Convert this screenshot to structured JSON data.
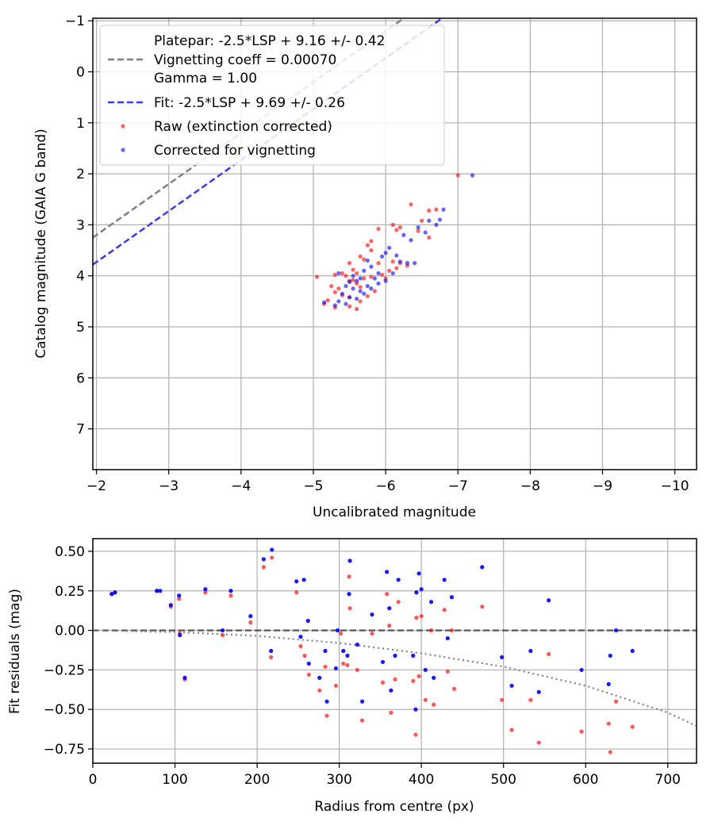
{
  "colors": {
    "raw": "#ff0000",
    "corrected": "#0000ff",
    "platepar_line": "#808080",
    "fit_line": "#3a3aee",
    "grid": "#b0b0b0",
    "model_curve": "#808080",
    "zero_line": "#555555"
  },
  "chart_data": [
    {
      "type": "scatter",
      "xlabel": "Uncalibrated magnitude",
      "ylabel": "Catalog magnitude (GAIA G band)",
      "xlim": [
        -1.95,
        -10.3
      ],
      "ylim": [
        7.8,
        -1.05
      ],
      "x_ticks": [
        -2,
        -3,
        -4,
        -5,
        -6,
        -7,
        -8,
        -9,
        -10
      ],
      "x_tick_labels": [
        "−2",
        "−3",
        "−4",
        "−5",
        "−6",
        "−7",
        "−8",
        "−9",
        "−10"
      ],
      "y_ticks": [
        -1,
        0,
        1,
        2,
        3,
        4,
        5,
        6,
        7
      ],
      "y_tick_labels": [
        "−1",
        "0",
        "1",
        "2",
        "3",
        "4",
        "5",
        "6",
        "7"
      ],
      "grid": true,
      "legend_position": "upper-left",
      "legend": {
        "platepar_line1": "Platepar: -2.5*LSP + 9.16 +/- 0.42",
        "platepar_line2": "Vignetting coeff = 0.00070",
        "platepar_line3": "Gamma = 1.00",
        "fit": "Fit: -2.5*LSP + 9.69 +/- 0.26",
        "raw": "Raw (extinction corrected)",
        "corrected": "Corrected for vignetting"
      },
      "lines": [
        {
          "name": "Platepar",
          "intercept": 9.16,
          "slope": 1.0,
          "style": "dashed"
        },
        {
          "name": "Fit",
          "intercept": 9.69,
          "slope": 1.0,
          "style": "dashed"
        }
      ],
      "series": [
        {
          "name": "Raw (extinction corrected)",
          "points": [
            [
              -7.0,
              2.03
            ],
            [
              -6.35,
              2.6
            ],
            [
              -6.6,
              2.72
            ],
            [
              -6.7,
              2.7
            ],
            [
              -6.5,
              2.92
            ],
            [
              -6.2,
              3.05
            ],
            [
              -6.1,
              3.0
            ],
            [
              -6.15,
              3.1
            ],
            [
              -5.9,
              3.08
            ],
            [
              -6.45,
              3.12
            ],
            [
              -6.6,
              3.25
            ],
            [
              -5.8,
              3.32
            ],
            [
              -5.75,
              3.4
            ],
            [
              -5.8,
              3.5
            ],
            [
              -5.65,
              3.62
            ],
            [
              -5.7,
              3.68
            ],
            [
              -5.9,
              3.75
            ],
            [
              -6.1,
              3.72
            ],
            [
              -6.2,
              3.75
            ],
            [
              -6.3,
              3.8
            ],
            [
              -5.5,
              3.75
            ],
            [
              -5.55,
              3.88
            ],
            [
              -5.6,
              3.95
            ],
            [
              -5.95,
              3.98
            ],
            [
              -5.8,
              4.02
            ],
            [
              -5.7,
              4.05
            ],
            [
              -5.55,
              4.08
            ],
            [
              -5.45,
              4.0
            ],
            [
              -5.4,
              3.95
            ],
            [
              -5.3,
              3.98
            ],
            [
              -5.05,
              4.02
            ],
            [
              -5.5,
              4.1
            ],
            [
              -5.6,
              4.15
            ],
            [
              -5.65,
              4.22
            ],
            [
              -5.35,
              4.25
            ],
            [
              -5.3,
              4.32
            ],
            [
              -5.4,
              4.38
            ],
            [
              -5.5,
              4.42
            ],
            [
              -5.2,
              4.48
            ],
            [
              -5.15,
              4.55
            ],
            [
              -5.3,
              4.62
            ],
            [
              -5.5,
              4.6
            ],
            [
              -5.6,
              4.65
            ],
            [
              -5.75,
              4.4
            ],
            [
              -5.85,
              4.3
            ],
            [
              -6.0,
              4.05
            ],
            [
              -6.05,
              3.9
            ],
            [
              -6.15,
              3.85
            ],
            [
              -5.25,
              4.2
            ],
            [
              -5.65,
              4.5
            ]
          ]
        },
        {
          "name": "Corrected for vignetting",
          "points": [
            [
              -7.2,
              2.03
            ],
            [
              -6.8,
              2.7
            ],
            [
              -6.75,
              2.9
            ],
            [
              -6.45,
              3.05
            ],
            [
              -6.55,
              3.15
            ],
            [
              -6.25,
              3.2
            ],
            [
              -6.35,
              3.3
            ],
            [
              -6.05,
              3.45
            ],
            [
              -6.0,
              3.55
            ],
            [
              -5.95,
              3.62
            ],
            [
              -6.2,
              3.72
            ],
            [
              -6.3,
              3.75
            ],
            [
              -6.4,
              3.75
            ],
            [
              -5.75,
              3.7
            ],
            [
              -5.8,
              3.82
            ],
            [
              -5.7,
              3.9
            ],
            [
              -5.9,
              3.95
            ],
            [
              -5.85,
              4.05
            ],
            [
              -5.65,
              4.05
            ],
            [
              -5.6,
              4.1
            ],
            [
              -5.55,
              4.0
            ],
            [
              -5.5,
              4.12
            ],
            [
              -5.45,
              4.2
            ],
            [
              -5.55,
              4.25
            ],
            [
              -5.65,
              4.3
            ],
            [
              -5.4,
              4.35
            ],
            [
              -5.5,
              4.42
            ],
            [
              -5.6,
              4.45
            ],
            [
              -5.35,
              4.5
            ],
            [
              -5.15,
              4.52
            ],
            [
              -5.3,
              4.58
            ],
            [
              -5.45,
              4.55
            ],
            [
              -5.7,
              4.35
            ],
            [
              -5.8,
              4.25
            ],
            [
              -6.0,
              4.1
            ],
            [
              -6.1,
              3.95
            ],
            [
              -5.35,
              3.95
            ],
            [
              -5.75,
              4.2
            ],
            [
              -6.15,
              3.6
            ],
            [
              -5.9,
              4.15
            ],
            [
              -6.6,
              2.92
            ],
            [
              -6.7,
              3.0
            ]
          ]
        }
      ]
    },
    {
      "type": "scatter",
      "xlabel": "Radius from centre (px)",
      "ylabel": "Fit residuals (mag)",
      "xlim": [
        0,
        735
      ],
      "ylim": [
        -0.84,
        0.58
      ],
      "x_ticks": [
        0,
        100,
        200,
        300,
        400,
        500,
        600,
        700
      ],
      "x_tick_labels": [
        "0",
        "100",
        "200",
        "300",
        "400",
        "500",
        "600",
        "700"
      ],
      "y_ticks": [
        0.5,
        0.25,
        0.0,
        -0.25,
        -0.5,
        -0.75
      ],
      "y_tick_labels": [
        "0.50",
        "0.25",
        "0.00",
        "−0.25",
        "−0.50",
        "−0.75"
      ],
      "grid": true,
      "reference_line": {
        "name": "zero",
        "y": 0.0,
        "style": "dashed"
      },
      "model_curve": {
        "name": "vignetting model",
        "style": "dotted",
        "points": [
          [
            0,
            0.0
          ],
          [
            100,
            -0.01
          ],
          [
            200,
            -0.035
          ],
          [
            300,
            -0.08
          ],
          [
            400,
            -0.145
          ],
          [
            500,
            -0.23
          ],
          [
            600,
            -0.35
          ],
          [
            700,
            -0.52
          ],
          [
            735,
            -0.605
          ]
        ]
      },
      "series": [
        {
          "name": "Raw",
          "points": [
            [
              23,
              0.23
            ],
            [
              27,
              0.24
            ],
            [
              78,
              0.25
            ],
            [
              95,
              0.15
            ],
            [
              105,
              0.2
            ],
            [
              106,
              -0.02
            ],
            [
              112,
              -0.31
            ],
            [
              137,
              0.24
            ],
            [
              158,
              -0.03
            ],
            [
              168,
              0.22
            ],
            [
              192,
              0.05
            ],
            [
              208,
              0.4
            ],
            [
              218,
              0.46
            ],
            [
              217,
              -0.17
            ],
            [
              248,
              0.24
            ],
            [
              253,
              -0.1
            ],
            [
              258,
              -0.16
            ],
            [
              263,
              -0.28
            ],
            [
              276,
              -0.38
            ],
            [
              283,
              -0.23
            ],
            [
              285,
              -0.54
            ],
            [
              296,
              -0.35
            ],
            [
              302,
              -0.02
            ],
            [
              305,
              -0.21
            ],
            [
              310,
              -0.22
            ],
            [
              312,
              0.34
            ],
            [
              313,
              0.14
            ],
            [
              322,
              -0.25
            ],
            [
              328,
              -0.57
            ],
            [
              340,
              -0.02
            ],
            [
              353,
              -0.33
            ],
            [
              358,
              0.23
            ],
            [
              361,
              0.03
            ],
            [
              363,
              -0.52
            ],
            [
              368,
              -0.31
            ],
            [
              372,
              0.18
            ],
            [
              390,
              -0.32
            ],
            [
              393,
              -0.66
            ],
            [
              394,
              0.08
            ],
            [
              397,
              -0.29
            ],
            [
              400,
              0.09
            ],
            [
              405,
              -0.44
            ],
            [
              412,
              0.0
            ],
            [
              415,
              -0.47
            ],
            [
              428,
              0.13
            ],
            [
              432,
              -0.26
            ],
            [
              437,
              0.0
            ],
            [
              440,
              -0.37
            ],
            [
              474,
              0.15
            ],
            [
              498,
              -0.44
            ],
            [
              510,
              -0.63
            ],
            [
              533,
              -0.44
            ],
            [
              543,
              -0.71
            ],
            [
              555,
              -0.15
            ],
            [
              595,
              -0.64
            ],
            [
              628,
              -0.59
            ],
            [
              630,
              -0.77
            ],
            [
              637,
              -0.45
            ],
            [
              657,
              -0.61
            ]
          ]
        },
        {
          "name": "Corrected",
          "points": [
            [
              23,
              0.23
            ],
            [
              27,
              0.24
            ],
            [
              78,
              0.25
            ],
            [
              82,
              0.25
            ],
            [
              95,
              0.16
            ],
            [
              105,
              0.22
            ],
            [
              106,
              -0.03
            ],
            [
              112,
              -0.3
            ],
            [
              137,
              0.26
            ],
            [
              158,
              0.0
            ],
            [
              168,
              0.25
            ],
            [
              192,
              0.09
            ],
            [
              208,
              0.45
            ],
            [
              218,
              0.51
            ],
            [
              217,
              -0.13
            ],
            [
              248,
              0.31
            ],
            [
              253,
              -0.04
            ],
            [
              257,
              0.32
            ],
            [
              262,
              0.06
            ],
            [
              263,
              -0.21
            ],
            [
              276,
              -0.3
            ],
            [
              283,
              -0.13
            ],
            [
              285,
              -0.45
            ],
            [
              296,
              -0.24
            ],
            [
              298,
              0.0
            ],
            [
              305,
              -0.13
            ],
            [
              310,
              -0.16
            ],
            [
              312,
              0.23
            ],
            [
              313,
              0.44
            ],
            [
              322,
              -0.09
            ],
            [
              328,
              -0.45
            ],
            [
              340,
              0.1
            ],
            [
              353,
              -0.2
            ],
            [
              358,
              0.37
            ],
            [
              361,
              0.14
            ],
            [
              363,
              -0.38
            ],
            [
              368,
              -0.16
            ],
            [
              372,
              0.32
            ],
            [
              390,
              -0.16
            ],
            [
              393,
              -0.5
            ],
            [
              394,
              0.24
            ],
            [
              397,
              0.36
            ],
            [
              400,
              0.26
            ],
            [
              405,
              -0.25
            ],
            [
              412,
              0.18
            ],
            [
              415,
              -0.3
            ],
            [
              428,
              0.32
            ],
            [
              432,
              -0.05
            ],
            [
              437,
              0.21
            ],
            [
              474,
              0.4
            ],
            [
              498,
              -0.17
            ],
            [
              510,
              -0.35
            ],
            [
              533,
              -0.13
            ],
            [
              543,
              -0.39
            ],
            [
              555,
              0.19
            ],
            [
              595,
              -0.25
            ],
            [
              628,
              -0.34
            ],
            [
              630,
              -0.16
            ],
            [
              637,
              0.0
            ],
            [
              657,
              -0.13
            ]
          ]
        }
      ]
    }
  ]
}
